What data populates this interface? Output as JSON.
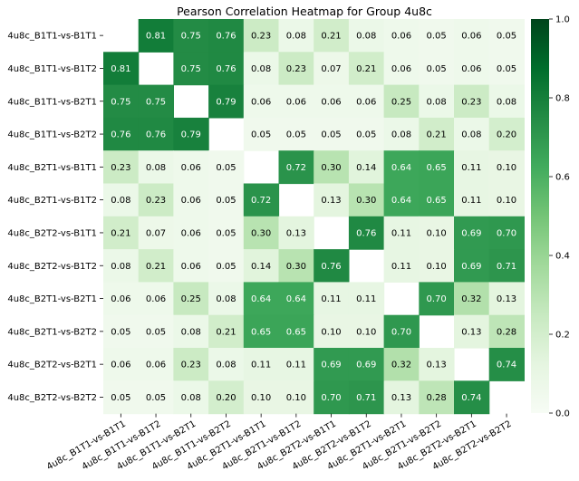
{
  "chart_data": {
    "type": "heatmap",
    "title": "Pearson Correlation Heatmap for Group 4u8c",
    "row_labels": [
      "4u8c_B1T1-vs-B1T1",
      "4u8c_B1T1-vs-B1T2",
      "4u8c_B1T1-vs-B2T1",
      "4u8c_B1T1-vs-B2T2",
      "4u8c_B2T1-vs-B1T1",
      "4u8c_B2T1-vs-B1T2",
      "4u8c_B2T2-vs-B1T1",
      "4u8c_B2T2-vs-B1T2",
      "4u8c_B2T1-vs-B2T1",
      "4u8c_B2T1-vs-B2T2",
      "4u8c_B2T2-vs-B2T1",
      "4u8c_B2T2-vs-B2T2"
    ],
    "col_labels": [
      "4u8c_B1T1-vs-B1T1",
      "4u8c_B1T1-vs-B1T2",
      "4u8c_B1T1-vs-B2T1",
      "4u8c_B1T1-vs-B2T2",
      "4u8c_B2T1-vs-B1T1",
      "4u8c_B2T1-vs-B1T2",
      "4u8c_B2T2-vs-B1T1",
      "4u8c_B2T2-vs-B1T2",
      "4u8c_B2T1-vs-B2T1",
      "4u8c_B2T1-vs-B2T2",
      "4u8c_B2T2-vs-B2T1",
      "4u8c_B2T2-vs-B2T2"
    ],
    "values": [
      [
        null,
        0.81,
        0.75,
        0.76,
        0.23,
        0.08,
        0.21,
        0.08,
        0.06,
        0.05,
        0.06,
        0.05
      ],
      [
        0.81,
        null,
        0.75,
        0.76,
        0.08,
        0.23,
        0.07,
        0.21,
        0.06,
        0.05,
        0.06,
        0.05
      ],
      [
        0.75,
        0.75,
        null,
        0.79,
        0.06,
        0.06,
        0.06,
        0.06,
        0.25,
        0.08,
        0.23,
        0.08
      ],
      [
        0.76,
        0.76,
        0.79,
        null,
        0.05,
        0.05,
        0.05,
        0.05,
        0.08,
        0.21,
        0.08,
        0.2
      ],
      [
        0.23,
        0.08,
        0.06,
        0.05,
        null,
        0.72,
        0.3,
        0.14,
        0.64,
        0.65,
        0.11,
        0.1
      ],
      [
        0.08,
        0.23,
        0.06,
        0.05,
        0.72,
        null,
        0.13,
        0.3,
        0.64,
        0.65,
        0.11,
        0.1
      ],
      [
        0.21,
        0.07,
        0.06,
        0.05,
        0.3,
        0.13,
        null,
        0.76,
        0.11,
        0.1,
        0.69,
        0.7
      ],
      [
        0.08,
        0.21,
        0.06,
        0.05,
        0.14,
        0.3,
        0.76,
        null,
        0.11,
        0.1,
        0.69,
        0.71
      ],
      [
        0.06,
        0.06,
        0.25,
        0.08,
        0.64,
        0.64,
        0.11,
        0.11,
        null,
        0.7,
        0.32,
        0.13
      ],
      [
        0.05,
        0.05,
        0.08,
        0.21,
        0.65,
        0.65,
        0.1,
        0.1,
        0.7,
        null,
        0.13,
        0.28
      ],
      [
        0.06,
        0.06,
        0.23,
        0.08,
        0.11,
        0.11,
        0.69,
        0.69,
        0.32,
        0.13,
        null,
        0.74
      ],
      [
        0.05,
        0.05,
        0.08,
        0.2,
        0.1,
        0.1,
        0.7,
        0.71,
        0.13,
        0.28,
        0.74,
        null
      ]
    ],
    "colorbar": {
      "colormap": "Greens",
      "range": [
        0.0,
        1.0
      ],
      "ticks": [
        "0.0",
        "0.2",
        "0.4",
        "0.6",
        "0.8",
        "1.0"
      ]
    }
  }
}
